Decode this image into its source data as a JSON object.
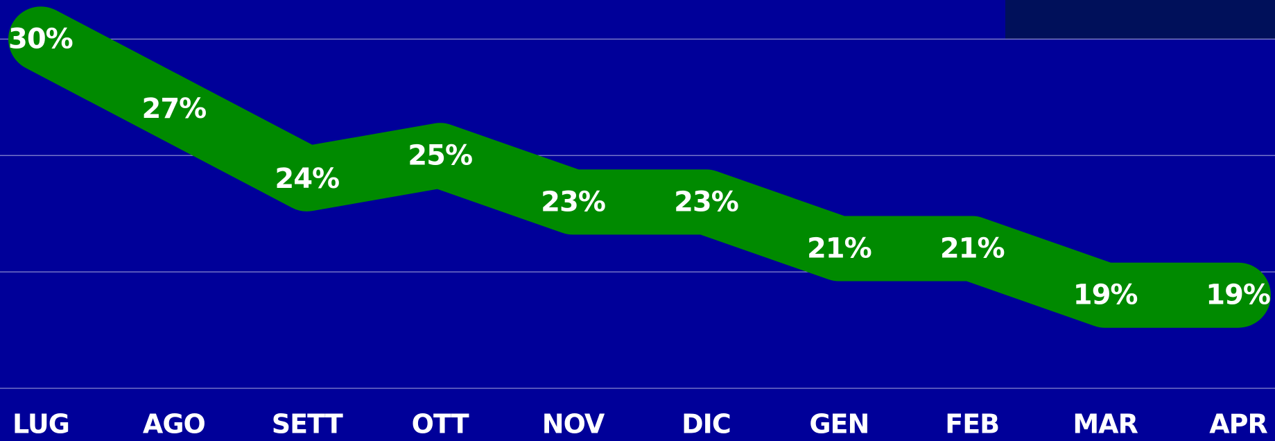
{
  "chart_data": {
    "type": "line",
    "categories": [
      "LUG",
      "AGO",
      "SETT",
      "OTT",
      "NOV",
      "DIC",
      "GEN",
      "FEB",
      "MAR",
      "APR"
    ],
    "series": [
      {
        "color": "#008a00",
        "values": [
          30,
          27,
          24,
          25,
          23,
          23,
          21,
          21,
          19,
          19
        ],
        "value_labels": [
          "30%",
          "27%",
          "24%",
          "25%",
          "23%",
          "23%",
          "21%",
          "21%",
          "19%",
          "19%"
        ]
      }
    ],
    "ylim": [
      15,
      31.68
    ],
    "yticks": [
      15,
      20,
      25,
      30
    ],
    "grid": true
  }
}
